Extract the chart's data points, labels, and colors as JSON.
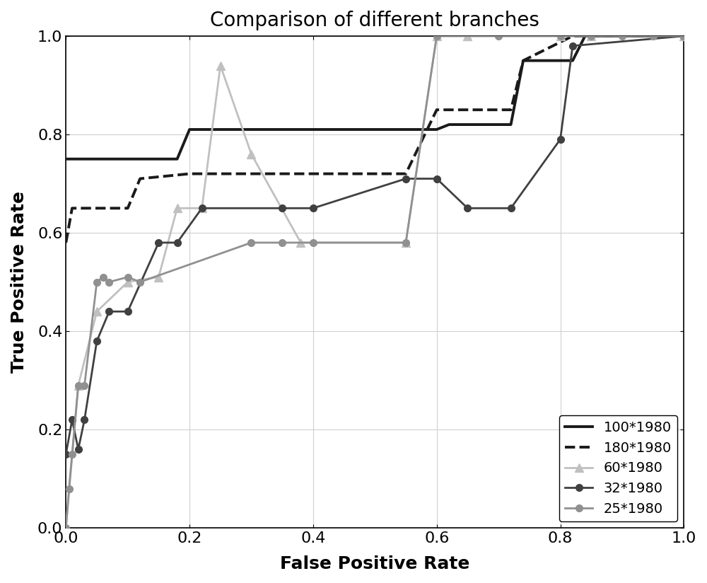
{
  "title": "Comparison of different branches",
  "xlabel": "False Positive Rate",
  "ylabel": "True Positive Rate",
  "xlim": [
    0,
    1
  ],
  "ylim": [
    0,
    1
  ],
  "series": [
    {
      "label": "100*1980",
      "color": "#1a1a1a",
      "linewidth": 2.8,
      "linestyle": "-",
      "marker": null,
      "markersize": 0,
      "x": [
        0.0,
        0.005,
        0.01,
        0.18,
        0.2,
        0.38,
        0.6,
        0.62,
        0.72,
        0.74,
        0.82,
        0.84,
        1.0
      ],
      "y": [
        0.75,
        0.75,
        0.75,
        0.75,
        0.81,
        0.81,
        0.81,
        0.82,
        0.82,
        0.95,
        0.95,
        1.0,
        1.0
      ]
    },
    {
      "label": "180*1980",
      "color": "#1a1a1a",
      "linewidth": 2.8,
      "linestyle": "--",
      "marker": null,
      "markersize": 0,
      "x": [
        0.0,
        0.01,
        0.1,
        0.12,
        0.2,
        0.36,
        0.55,
        0.6,
        0.72,
        0.74,
        0.82,
        1.0
      ],
      "y": [
        0.58,
        0.65,
        0.65,
        0.71,
        0.72,
        0.72,
        0.72,
        0.85,
        0.85,
        0.95,
        1.0,
        1.0
      ]
    },
    {
      "label": "60*1980",
      "color": "#c0c0c0",
      "linewidth": 2.0,
      "linestyle": "-",
      "marker": "^",
      "markersize": 9,
      "x": [
        0.0,
        0.02,
        0.05,
        0.1,
        0.15,
        0.18,
        0.22,
        0.25,
        0.3,
        0.38,
        0.55,
        0.6,
        0.65,
        0.8,
        0.85,
        1.0
      ],
      "y": [
        0.0,
        0.29,
        0.44,
        0.5,
        0.51,
        0.65,
        0.65,
        0.94,
        0.76,
        0.58,
        0.58,
        1.0,
        1.0,
        1.0,
        1.0,
        1.0
      ]
    },
    {
      "label": "32*1980",
      "color": "#404040",
      "linewidth": 2.0,
      "linestyle": "-",
      "marker": "o",
      "markersize": 7,
      "x": [
        0.0,
        0.01,
        0.02,
        0.03,
        0.05,
        0.07,
        0.1,
        0.15,
        0.18,
        0.22,
        0.35,
        0.4,
        0.55,
        0.6,
        0.65,
        0.72,
        0.8,
        0.82,
        1.0
      ],
      "y": [
        0.15,
        0.22,
        0.16,
        0.22,
        0.38,
        0.44,
        0.44,
        0.58,
        0.58,
        0.65,
        0.65,
        0.65,
        0.71,
        0.71,
        0.65,
        0.65,
        0.79,
        0.98,
        1.0
      ]
    },
    {
      "label": "25*1980",
      "color": "#909090",
      "linewidth": 2.0,
      "linestyle": "-",
      "marker": "o",
      "markersize": 7,
      "x": [
        0.0,
        0.005,
        0.01,
        0.02,
        0.03,
        0.05,
        0.06,
        0.07,
        0.1,
        0.12,
        0.3,
        0.35,
        0.4,
        0.55,
        0.6,
        0.7,
        0.8,
        0.85,
        0.9,
        0.95,
        1.0
      ],
      "y": [
        0.0,
        0.08,
        0.15,
        0.29,
        0.29,
        0.5,
        0.51,
        0.5,
        0.51,
        0.5,
        0.58,
        0.58,
        0.58,
        0.58,
        1.0,
        1.0,
        1.0,
        1.0,
        1.0,
        1.0,
        1.0
      ]
    }
  ],
  "legend_loc": "lower right",
  "title_fontsize": 20,
  "axis_label_fontsize": 18,
  "tick_fontsize": 16,
  "legend_fontsize": 14,
  "figsize": [
    10.0,
    8.24
  ],
  "dpi": 100,
  "xticks": [
    0,
    0.2,
    0.4,
    0.6,
    0.8,
    1.0
  ],
  "yticks": [
    0,
    0.2,
    0.4,
    0.6,
    0.8,
    1.0
  ],
  "background_color": "#ffffff",
  "grid_color": "#d0d0d0"
}
